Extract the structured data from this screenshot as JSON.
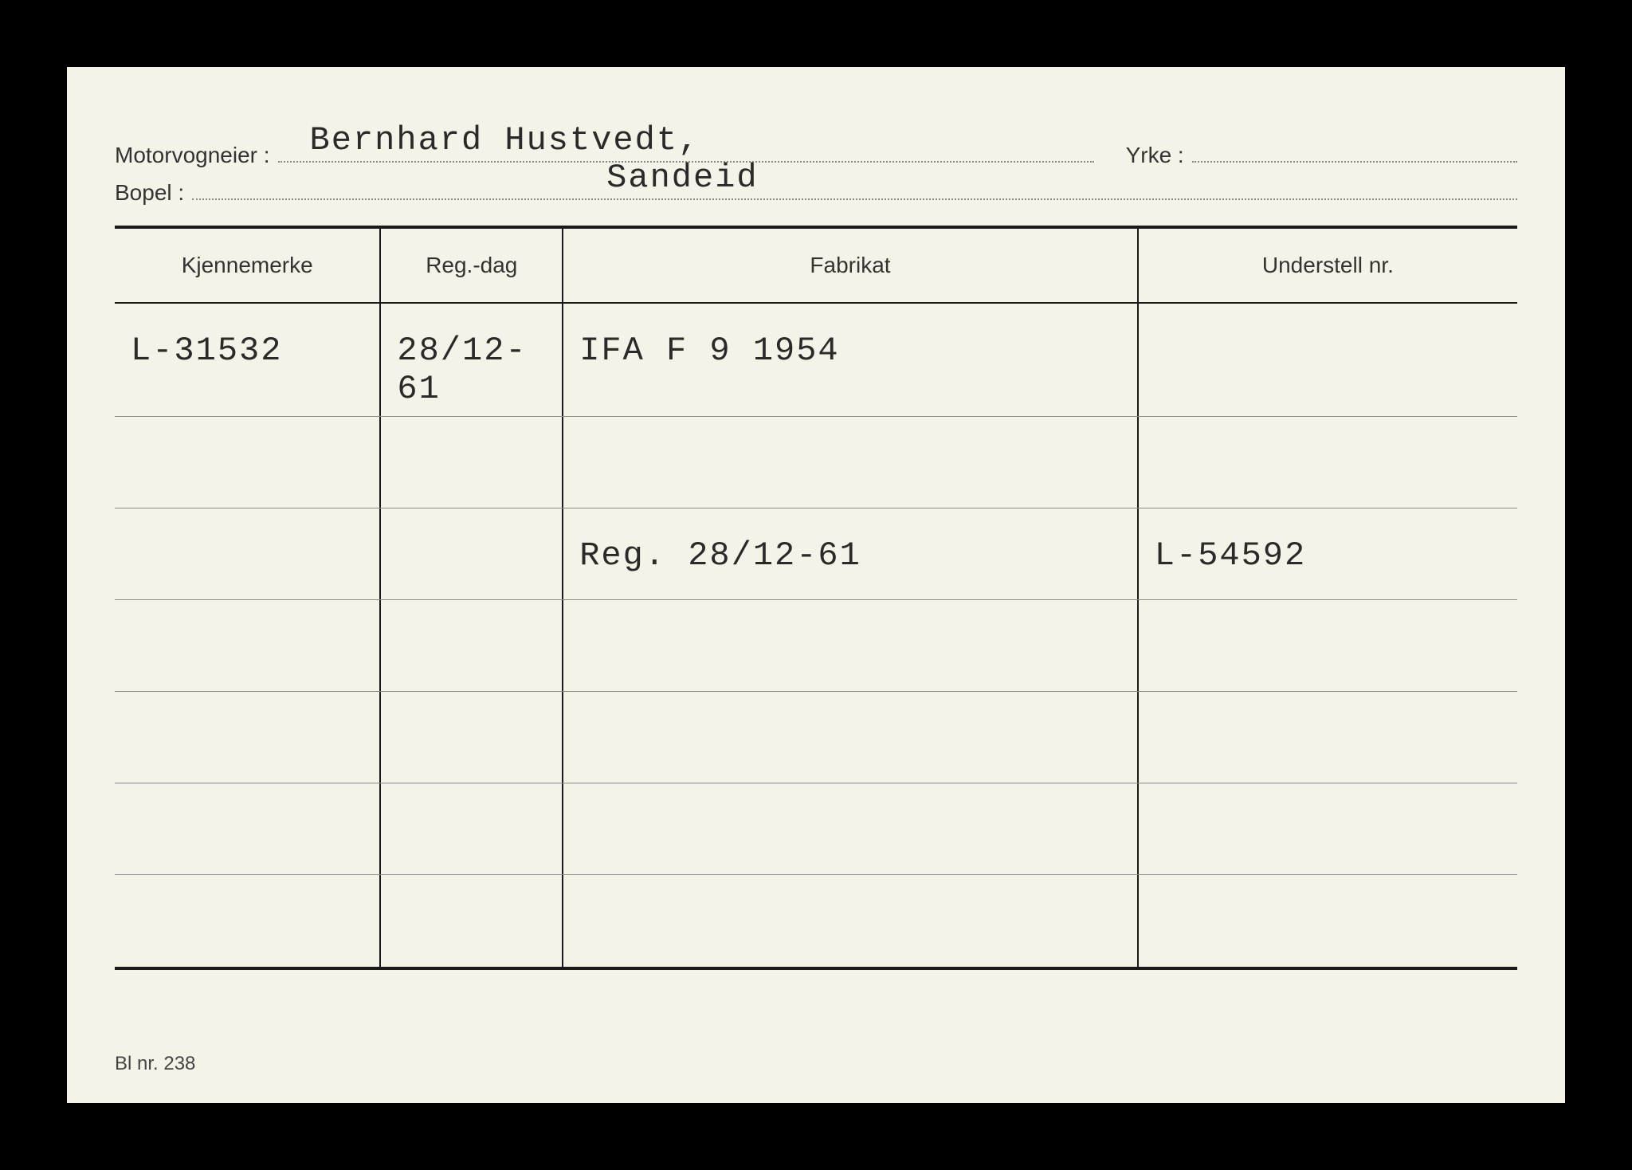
{
  "labels": {
    "motorvogneier": "Motorvogneier :",
    "yrke": "Yrke :",
    "bopel": "Bopel :",
    "kjennemerke": "Kjennemerke",
    "regdag": "Reg.-dag",
    "fabrikat": "Fabrikat",
    "understellnr": "Understell nr."
  },
  "header": {
    "owner": "Bernhard Hustvedt,",
    "occupation": "",
    "residence": "Sandeid"
  },
  "table": {
    "columns": [
      "Kjennemerke",
      "Reg.-dag",
      "Fabrikat",
      "Understell nr."
    ],
    "column_widths_pct": [
      19,
      13,
      41,
      27
    ],
    "rows": [
      {
        "kjennemerke": "L-31532",
        "regdag": "28/12-61",
        "fabrikat": "IFA  F 9  1954",
        "understellnr": ""
      },
      {
        "kjennemerke": "",
        "regdag": "",
        "fabrikat": "",
        "understellnr": ""
      },
      {
        "kjennemerke": "",
        "regdag": "",
        "fabrikat": "Reg. 28/12-61",
        "understellnr": "L-54592"
      },
      {
        "kjennemerke": "",
        "regdag": "",
        "fabrikat": "",
        "understellnr": ""
      },
      {
        "kjennemerke": "",
        "regdag": "",
        "fabrikat": "",
        "understellnr": ""
      },
      {
        "kjennemerke": "",
        "regdag": "",
        "fabrikat": "",
        "understellnr": ""
      },
      {
        "kjennemerke": "",
        "regdag": "",
        "fabrikat": "",
        "understellnr": ""
      }
    ]
  },
  "footer": "Bl nr. 238",
  "style": {
    "background_color": "#000000",
    "card_color": "#f5f2e8",
    "text_color": "#2a2a2a",
    "line_color": "#1a1a1a",
    "label_fontsize": 28,
    "typed_fontsize": 42,
    "typed_font": "Courier New"
  }
}
